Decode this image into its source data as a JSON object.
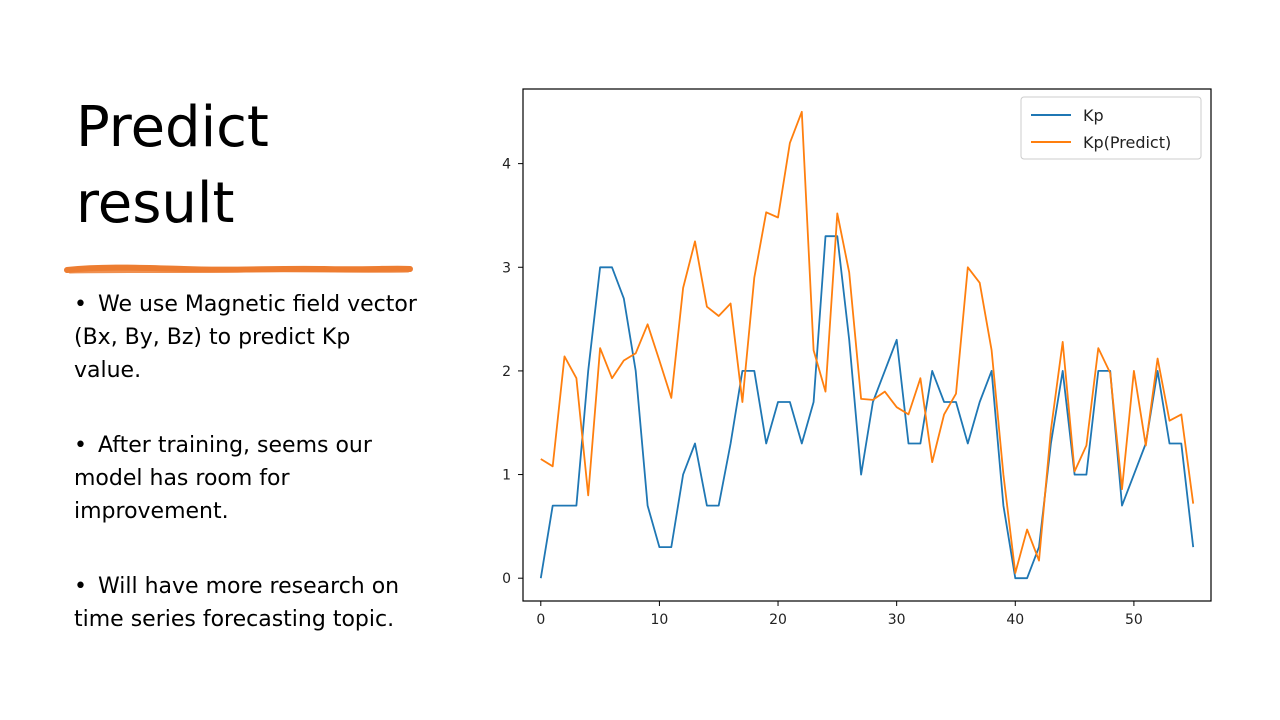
{
  "slide": {
    "title_line1": "Predict",
    "title_line2": "result",
    "accent_color": "#ED7D31",
    "bullets": [
      "We use Magnetic field vector (Bx, By, Bz) to predict Kp value.",
      "After training, seems our model has room for improvement.",
      "Will have more research on time series forecasting topic."
    ]
  },
  "chart_data": {
    "type": "line",
    "title": "",
    "xlabel": "",
    "ylabel": "",
    "xlim": [
      0,
      55
    ],
    "ylim": [
      0,
      4.5
    ],
    "xticks": [
      0,
      10,
      20,
      30,
      40,
      50
    ],
    "yticks": [
      0,
      1,
      2,
      3,
      4
    ],
    "grid": false,
    "legend_position": "top-right",
    "x": [
      0,
      1,
      2,
      3,
      4,
      5,
      6,
      7,
      8,
      9,
      10,
      11,
      12,
      13,
      14,
      15,
      16,
      17,
      18,
      19,
      20,
      21,
      22,
      23,
      24,
      25,
      26,
      27,
      28,
      29,
      30,
      31,
      32,
      33,
      34,
      35,
      36,
      37,
      38,
      39,
      40,
      41,
      42,
      43,
      44,
      45,
      46,
      47,
      48,
      49,
      50,
      51,
      52,
      53,
      54,
      55
    ],
    "series": [
      {
        "name": "Kp",
        "color": "#1f77b4",
        "values": [
          0,
          0.7,
          0.7,
          0.7,
          2.0,
          3.0,
          3.0,
          2.7,
          2.0,
          0.7,
          0.3,
          0.3,
          1.0,
          1.3,
          0.7,
          0.7,
          1.3,
          2.0,
          2.0,
          1.3,
          1.7,
          1.7,
          1.3,
          1.7,
          3.3,
          3.3,
          2.3,
          1.0,
          1.7,
          2.0,
          2.3,
          1.3,
          1.3,
          2.0,
          1.7,
          1.7,
          1.3,
          1.7,
          2.0,
          0.7,
          0,
          0,
          0.3,
          1.3,
          2.0,
          1.0,
          1.0,
          2.0,
          2.0,
          0.7,
          1.0,
          1.3,
          2.0,
          1.3,
          1.3,
          0.3
        ]
      },
      {
        "name": "Kp(Predict)",
        "color": "#ff7f0e",
        "values": [
          1.15,
          1.08,
          2.14,
          1.93,
          0.8,
          2.22,
          1.93,
          2.1,
          2.17,
          2.45,
          2.1,
          1.74,
          2.8,
          3.25,
          2.62,
          2.53,
          2.65,
          1.7,
          2.9,
          3.53,
          3.48,
          4.2,
          4.5,
          2.2,
          1.8,
          3.52,
          2.95,
          1.73,
          1.72,
          1.8,
          1.65,
          1.58,
          1.93,
          1.12,
          1.58,
          1.78,
          3.0,
          2.85,
          2.2,
          1.0,
          0.05,
          0.47,
          0.17,
          1.43,
          2.28,
          1.03,
          1.28,
          2.22,
          1.98,
          0.86,
          2.0,
          1.28,
          2.12,
          1.52,
          1.58,
          0.72
        ]
      }
    ]
  }
}
